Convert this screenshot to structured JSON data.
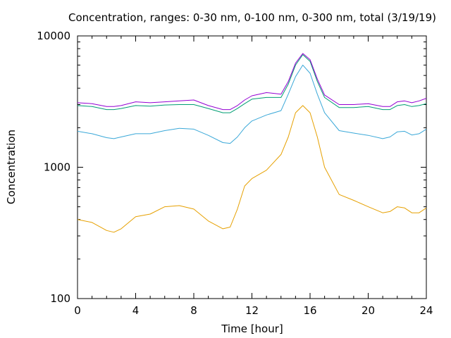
{
  "chart_data": {
    "type": "line",
    "title": "Concentration, ranges: 0-30 nm, 0-100 nm, 0-300 nm, total (3/19/19)",
    "xlabel": "Time [hour]",
    "ylabel": "Concentration",
    "xlim": [
      0,
      24
    ],
    "ylim": [
      100,
      10000
    ],
    "yscale": "log",
    "xticks": [
      0,
      4,
      8,
      12,
      16,
      20,
      24
    ],
    "xtick_labels": [
      "0",
      "4",
      "8",
      "12",
      "16",
      "20",
      "24"
    ],
    "yticks": [
      100,
      1000,
      10000
    ],
    "ytick_labels": [
      "100",
      "1000",
      "10000"
    ],
    "grid": false,
    "legend": "none",
    "x": [
      0,
      1,
      2,
      2.5,
      3,
      4,
      5,
      6,
      7,
      8,
      9,
      10,
      10.5,
      11,
      11.5,
      12,
      13,
      14,
      14.5,
      15,
      15.5,
      16,
      16.5,
      17,
      18,
      19,
      20,
      21,
      21.5,
      22,
      22.5,
      23,
      23.5,
      24
    ],
    "series": [
      {
        "color": "#e6a000",
        "values": [
          400,
          380,
          330,
          320,
          340,
          420,
          440,
          500,
          510,
          480,
          390,
          340,
          350,
          480,
          720,
          820,
          950,
          1250,
          1700,
          2600,
          2950,
          2600,
          1700,
          1000,
          620,
          560,
          500,
          450,
          460,
          500,
          490,
          450,
          450,
          490
        ]
      },
      {
        "color": "#3aa8d8",
        "values": [
          1880,
          1800,
          1680,
          1650,
          1700,
          1800,
          1800,
          1900,
          1980,
          1950,
          1750,
          1540,
          1520,
          1700,
          2000,
          2250,
          2500,
          2700,
          3600,
          4900,
          6000,
          5200,
          3600,
          2600,
          1900,
          1820,
          1750,
          1650,
          1700,
          1860,
          1880,
          1760,
          1800,
          1950
        ]
      },
      {
        "color": "#009e73",
        "values": [
          2950,
          2900,
          2750,
          2750,
          2800,
          2950,
          2920,
          2980,
          3000,
          3000,
          2800,
          2600,
          2600,
          2800,
          3050,
          3300,
          3400,
          3400,
          4300,
          6000,
          7200,
          6400,
          4500,
          3400,
          2850,
          2850,
          2900,
          2750,
          2750,
          2950,
          3000,
          2900,
          2950,
          3050
        ]
      },
      {
        "color": "#9400d3",
        "values": [
          3100,
          3050,
          2900,
          2900,
          2950,
          3150,
          3100,
          3150,
          3200,
          3250,
          2950,
          2750,
          2750,
          2950,
          3250,
          3500,
          3700,
          3600,
          4500,
          6200,
          7350,
          6600,
          4700,
          3550,
          3000,
          3000,
          3050,
          2900,
          2900,
          3150,
          3200,
          3100,
          3200,
          3350
        ]
      }
    ]
  }
}
